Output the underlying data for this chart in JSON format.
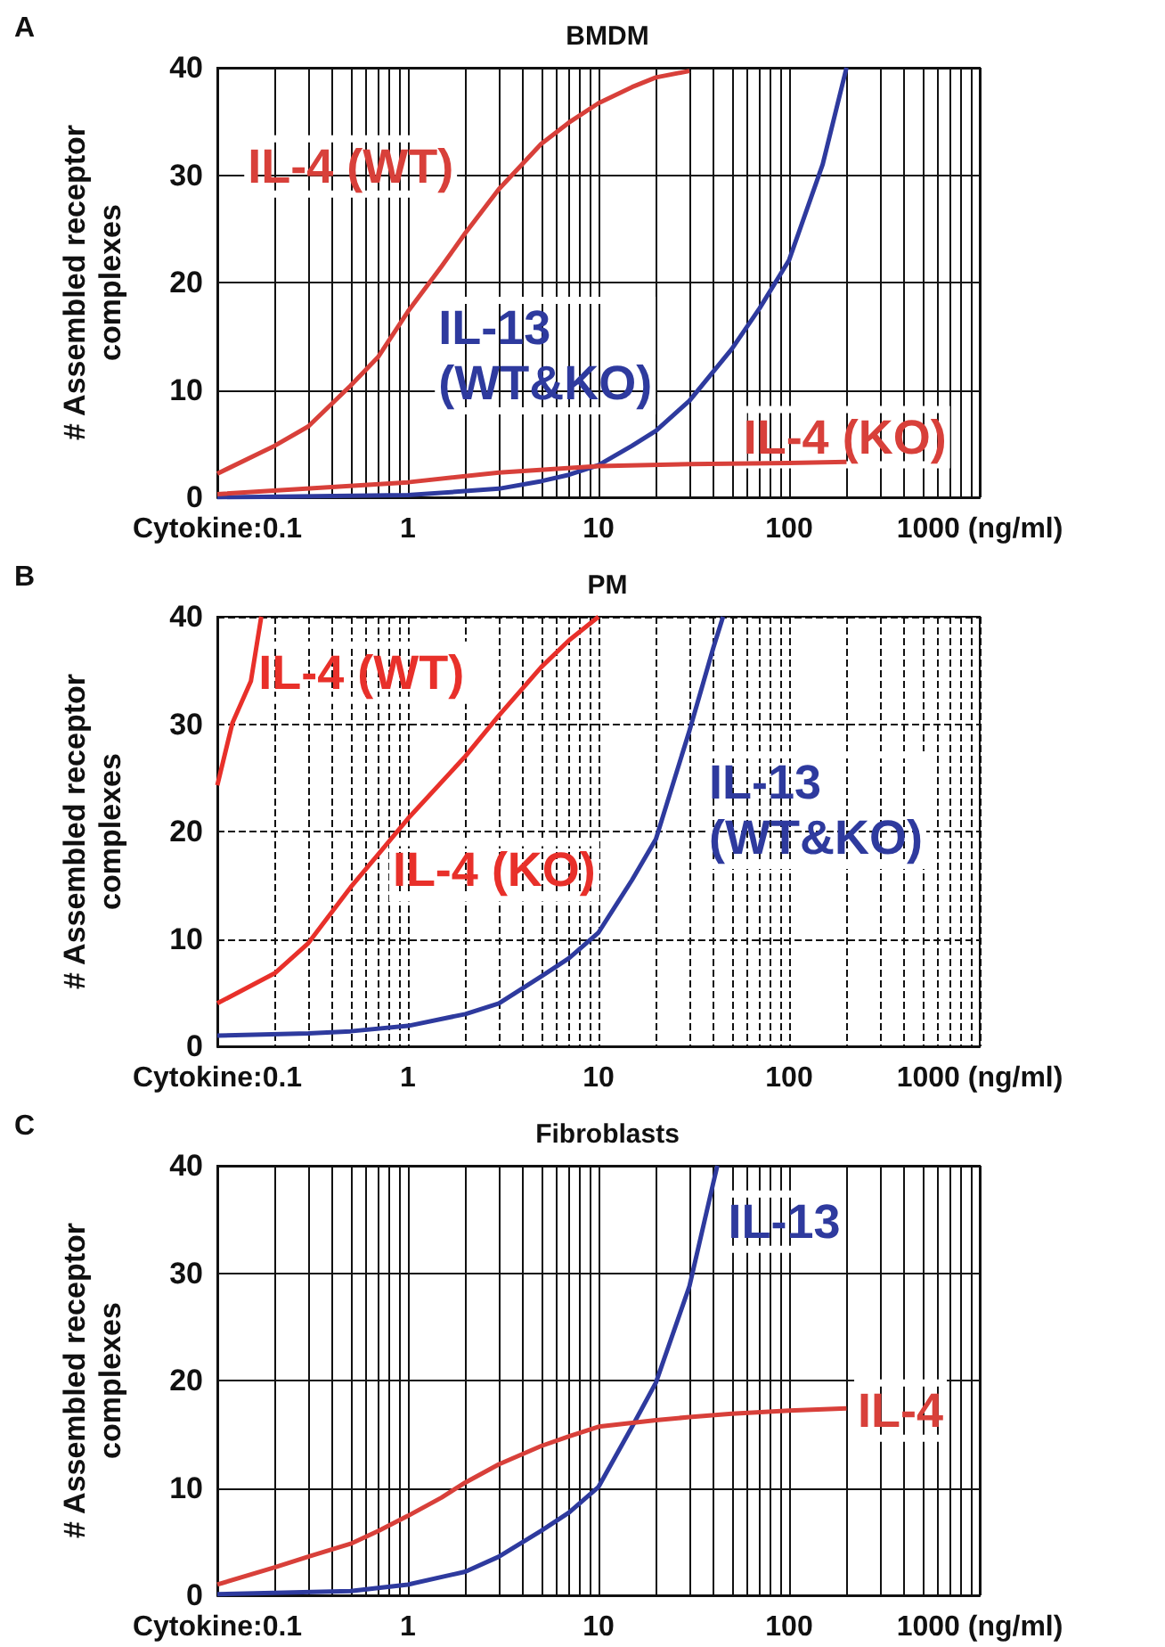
{
  "chart_data": [
    {
      "type": "line",
      "title": "BMDM",
      "ylabel": "# Assembled receptor complexes",
      "annotations": [
        "A"
      ],
      "log": "x",
      "grid": true,
      "xlim": [
        0.1,
        1000
      ],
      "ylim": [
        0,
        40
      ],
      "yticks": [
        0,
        10,
        20,
        30,
        40
      ],
      "xticks": [
        {
          "value": 0.1,
          "label": "Cytokine:0.1"
        },
        {
          "value": 0.2,
          "label": null
        },
        {
          "value": 0.3,
          "label": null
        },
        {
          "value": 0.4,
          "label": null
        },
        {
          "value": 0.5,
          "label": null
        },
        {
          "value": 0.6,
          "label": null
        },
        {
          "value": 0.7,
          "label": null
        },
        {
          "value": 0.8,
          "label": null
        },
        {
          "value": 0.9,
          "label": null
        },
        1,
        {
          "value": 2,
          "label": null
        },
        {
          "value": 3,
          "label": null
        },
        {
          "value": 4,
          "label": null
        },
        {
          "value": 5,
          "label": null
        },
        {
          "value": 6,
          "label": null
        },
        {
          "value": 7,
          "label": null
        },
        {
          "value": 8,
          "label": null
        },
        {
          "value": 9,
          "label": null
        },
        10,
        {
          "value": 20,
          "label": null
        },
        {
          "value": 30,
          "label": null
        },
        {
          "value": 40,
          "label": null
        },
        {
          "value": 50,
          "label": null
        },
        {
          "value": 60,
          "label": null
        },
        {
          "value": 70,
          "label": null
        },
        {
          "value": 80,
          "label": null
        },
        {
          "value": 90,
          "label": null
        },
        100,
        {
          "value": 200,
          "label": null
        },
        {
          "value": 300,
          "label": null
        },
        {
          "value": 400,
          "label": null
        },
        {
          "value": 500,
          "label": null
        },
        {
          "value": 600,
          "label": null
        },
        {
          "value": 700,
          "label": null
        },
        {
          "value": 800,
          "label": null
        },
        {
          "value": 900,
          "label": null
        },
        {
          "value": 1000,
          "label": "1000 (ng/ml)"
        }
      ],
      "series": [
        {
          "name": "IL-4 (WT)",
          "color": "#d8403a",
          "x": [
            0.1,
            0.2,
            0.3,
            0.5,
            0.7,
            1,
            1.5,
            2,
            3,
            5,
            7,
            10,
            15,
            20,
            30
          ],
          "values": [
            2.2,
            4.8,
            6.6,
            10.4,
            13.1,
            17.3,
            21.5,
            24.6,
            28.7,
            32.9,
            34.9,
            36.7,
            38.2,
            39.1,
            39.7
          ]
        },
        {
          "name": "IL-13 (WT&KO)",
          "color": "#2e3a9e",
          "x": [
            0.1,
            1,
            3,
            5,
            7,
            10,
            15,
            20,
            30,
            50,
            70,
            100,
            150,
            200
          ],
          "values": [
            0,
            0.2,
            0.8,
            1.5,
            2.1,
            3.0,
            4.8,
            6.2,
            9.0,
            13.8,
            17.6,
            22.1,
            31,
            40
          ]
        },
        {
          "name": "IL-4 (KO)",
          "color": "#d8403a",
          "x": [
            0.1,
            1,
            3,
            10,
            30,
            100,
            200
          ],
          "values": [
            0.3,
            1.4,
            2.3,
            2.9,
            3.1,
            3.2,
            3.3
          ]
        }
      ]
    },
    {
      "type": "line",
      "title": "PM",
      "ylabel": "# Assembled receptor complexes",
      "annotations": [
        "B"
      ],
      "log": "x",
      "grid": true,
      "xlim": [
        0.1,
        1000
      ],
      "ylim": [
        0,
        40
      ],
      "yticks": [
        0,
        10,
        20,
        30,
        40
      ],
      "xticks": [
        {
          "value": 0.1,
          "label": "Cytokine:0.1"
        },
        {
          "value": 0.2,
          "label": null
        },
        {
          "value": 0.3,
          "label": null
        },
        {
          "value": 0.4,
          "label": null
        },
        {
          "value": 0.5,
          "label": null
        },
        {
          "value": 0.6,
          "label": null
        },
        {
          "value": 0.7,
          "label": null
        },
        {
          "value": 0.8,
          "label": null
        },
        {
          "value": 0.9,
          "label": null
        },
        1,
        {
          "value": 2,
          "label": null
        },
        {
          "value": 3,
          "label": null
        },
        {
          "value": 4,
          "label": null
        },
        {
          "value": 5,
          "label": null
        },
        {
          "value": 6,
          "label": null
        },
        {
          "value": 7,
          "label": null
        },
        {
          "value": 8,
          "label": null
        },
        {
          "value": 9,
          "label": null
        },
        10,
        {
          "value": 20,
          "label": null
        },
        {
          "value": 30,
          "label": null
        },
        {
          "value": 40,
          "label": null
        },
        {
          "value": 50,
          "label": null
        },
        {
          "value": 60,
          "label": null
        },
        {
          "value": 70,
          "label": null
        },
        {
          "value": 80,
          "label": null
        },
        {
          "value": 90,
          "label": null
        },
        100,
        {
          "value": 200,
          "label": null
        },
        {
          "value": 300,
          "label": null
        },
        {
          "value": 400,
          "label": null
        },
        {
          "value": 500,
          "label": null
        },
        {
          "value": 600,
          "label": null
        },
        {
          "value": 700,
          "label": null
        },
        {
          "value": 800,
          "label": null
        },
        {
          "value": 900,
          "label": null
        },
        {
          "value": 1000,
          "label": "1000 (ng/ml)"
        }
      ],
      "series": [
        {
          "name": "IL-4 (WT)",
          "color": "#e8302a",
          "x": [
            0.1,
            0.12,
            0.15,
            0.17
          ],
          "values": [
            24.3,
            30.1,
            34,
            40
          ]
        },
        {
          "name": "IL-4 (KO)",
          "color": "#e8302a",
          "x": [
            0.1,
            0.2,
            0.3,
            0.5,
            0.7,
            1,
            2,
            3,
            5,
            7,
            10
          ],
          "values": [
            4.0,
            6.8,
            9.6,
            14.8,
            17.9,
            21.2,
            27.0,
            30.8,
            35.3,
            37.8,
            40
          ]
        },
        {
          "name": "IL-13 (WT&KO)",
          "color": "#2e3a9e",
          "x": [
            0.1,
            0.3,
            0.5,
            1,
            2,
            3,
            5,
            7,
            10,
            15,
            20,
            30,
            40,
            45
          ],
          "values": [
            1.0,
            1.2,
            1.4,
            1.9,
            3.0,
            4.0,
            6.5,
            8.2,
            10.6,
            15.5,
            19.3,
            29.4,
            37.1,
            40
          ]
        }
      ]
    },
    {
      "type": "line",
      "title": "Fibroblasts",
      "ylabel": "# Assembled receptor complexes",
      "annotations": [
        "C"
      ],
      "log": "x",
      "grid": true,
      "xlim": [
        0.1,
        1000
      ],
      "ylim": [
        0,
        40
      ],
      "yticks": [
        0,
        10,
        20,
        30,
        40
      ],
      "xticks": [
        {
          "value": 0.1,
          "label": "Cytokine:0.1"
        },
        {
          "value": 0.2,
          "label": null
        },
        {
          "value": 0.3,
          "label": null
        },
        {
          "value": 0.4,
          "label": null
        },
        {
          "value": 0.5,
          "label": null
        },
        {
          "value": 0.6,
          "label": null
        },
        {
          "value": 0.7,
          "label": null
        },
        {
          "value": 0.8,
          "label": null
        },
        {
          "value": 0.9,
          "label": null
        },
        1,
        {
          "value": 2,
          "label": null
        },
        {
          "value": 3,
          "label": null
        },
        {
          "value": 4,
          "label": null
        },
        {
          "value": 5,
          "label": null
        },
        {
          "value": 6,
          "label": null
        },
        {
          "value": 7,
          "label": null
        },
        {
          "value": 8,
          "label": null
        },
        {
          "value": 9,
          "label": null
        },
        10,
        {
          "value": 20,
          "label": null
        },
        {
          "value": 30,
          "label": null
        },
        {
          "value": 40,
          "label": null
        },
        {
          "value": 50,
          "label": null
        },
        {
          "value": 60,
          "label": null
        },
        {
          "value": 70,
          "label": null
        },
        {
          "value": 80,
          "label": null
        },
        {
          "value": 90,
          "label": null
        },
        100,
        {
          "value": 200,
          "label": null
        },
        {
          "value": 300,
          "label": null
        },
        {
          "value": 400,
          "label": null
        },
        {
          "value": 500,
          "label": null
        },
        {
          "value": 600,
          "label": null
        },
        {
          "value": 700,
          "label": null
        },
        {
          "value": 800,
          "label": null
        },
        {
          "value": 900,
          "label": null
        },
        {
          "value": 1000,
          "label": "1000 (ng/ml)"
        }
      ],
      "series": [
        {
          "name": "IL-13",
          "color": "#2e3a9e",
          "x": [
            0.1,
            0.5,
            1,
            2,
            3,
            5,
            7,
            10,
            15,
            20,
            30,
            40,
            42
          ],
          "values": [
            0.1,
            0.4,
            1.0,
            2.2,
            3.6,
            6.0,
            7.7,
            10.1,
            15.7,
            19.8,
            28.8,
            38.4,
            40
          ]
        },
        {
          "name": "IL-4",
          "color": "#d8403a",
          "x": [
            0.1,
            0.2,
            0.3,
            0.5,
            0.7,
            1,
            1.5,
            2,
            3,
            5,
            7,
            10,
            20,
            30,
            50,
            100,
            200
          ],
          "values": [
            1.0,
            2.6,
            3.6,
            4.8,
            6.0,
            7.4,
            9.1,
            10.5,
            12.2,
            13.9,
            14.8,
            15.7,
            16.3,
            16.6,
            16.9,
            17.2,
            17.4
          ]
        }
      ]
    }
  ]
}
